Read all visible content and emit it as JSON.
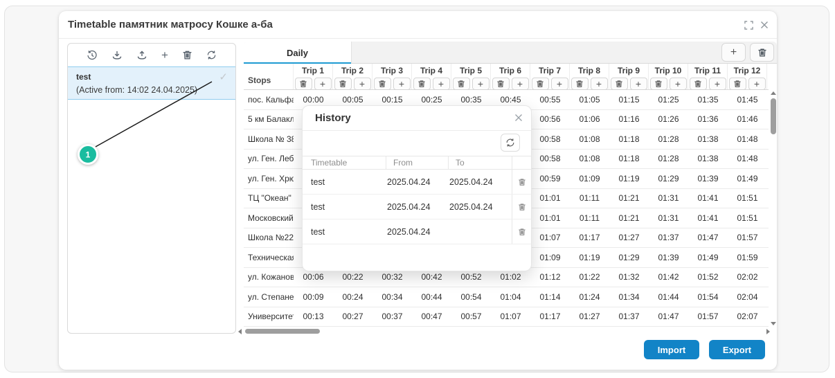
{
  "window": {
    "title": "Timetable памятник матросу Кошке а-ба"
  },
  "left_panel": {
    "item": {
      "name": "test",
      "active_from": "(Active from: 14:02 24.04.2025)",
      "selected": true
    }
  },
  "tabs": {
    "daily": "Daily"
  },
  "timetable": {
    "stops_header": "Stops",
    "trips": [
      "Trip 1",
      "Trip 2",
      "Trip 3",
      "Trip 4",
      "Trip 5",
      "Trip 6",
      "Trip 7",
      "Trip 8",
      "Trip 9",
      "Trip 10",
      "Trip 11",
      "Trip 12"
    ],
    "rows": [
      {
        "stop": "пос. Кальфа ...",
        "times": [
          "00:00",
          "00:05",
          "00:15",
          "00:25",
          "00:35",
          "00:45",
          "00:55",
          "01:05",
          "01:15",
          "01:25",
          "01:35",
          "01:45"
        ]
      },
      {
        "stop": "5 км Балакла...",
        "times": [
          "",
          "",
          "",
          "",
          "",
          "",
          "00:56",
          "01:06",
          "01:16",
          "01:26",
          "01:36",
          "01:46"
        ]
      },
      {
        "stop": "Школа № 38 ...",
        "times": [
          "",
          "",
          "",
          "",
          "",
          "",
          "00:58",
          "01:08",
          "01:18",
          "01:28",
          "01:38",
          "01:48"
        ]
      },
      {
        "stop": "ул. Ген. Лебе...",
        "times": [
          "",
          "",
          "",
          "",
          "",
          "",
          "00:58",
          "01:08",
          "01:18",
          "01:28",
          "01:38",
          "01:48"
        ]
      },
      {
        "stop": "ул. Ген. Хрюк...",
        "times": [
          "",
          "",
          "",
          "",
          "",
          "",
          "00:59",
          "01:09",
          "01:19",
          "01:29",
          "01:39",
          "01:49"
        ]
      },
      {
        "stop": "ТЦ \"Океан\" а...",
        "times": [
          "",
          "",
          "",
          "",
          "",
          "",
          "01:01",
          "01:11",
          "01:21",
          "01:31",
          "01:41",
          "01:51"
        ]
      },
      {
        "stop": "Московский ...",
        "times": [
          "",
          "",
          "",
          "",
          "",
          "",
          "01:01",
          "01:11",
          "01:21",
          "01:31",
          "01:41",
          "01:51"
        ]
      },
      {
        "stop": "Школа №22 ...",
        "times": [
          "",
          "",
          "",
          "",
          "",
          "",
          "01:07",
          "01:17",
          "01:27",
          "01:37",
          "01:47",
          "01:57"
        ]
      },
      {
        "stop": "Техническая ...",
        "times": [
          "",
          "",
          "",
          "",
          "",
          "",
          "01:09",
          "01:19",
          "01:29",
          "01:39",
          "01:49",
          "01:59"
        ]
      },
      {
        "stop": "ул. Кожанова...",
        "times": [
          "00:06",
          "00:22",
          "00:32",
          "00:42",
          "00:52",
          "01:02",
          "01:12",
          "01:22",
          "01:32",
          "01:42",
          "01:52",
          "02:02"
        ]
      },
      {
        "stop": "ул. Степанен...",
        "times": [
          "00:09",
          "00:24",
          "00:34",
          "00:44",
          "00:54",
          "01:04",
          "01:14",
          "01:24",
          "01:34",
          "01:44",
          "01:54",
          "02:04"
        ]
      },
      {
        "stop": "Университет ...",
        "times": [
          "00:13",
          "00:27",
          "00:37",
          "00:47",
          "00:57",
          "01:07",
          "01:17",
          "01:27",
          "01:37",
          "01:47",
          "01:57",
          "02:07"
        ]
      }
    ]
  },
  "history": {
    "title": "History",
    "columns": [
      "Timetable",
      "From",
      "To"
    ],
    "rows": [
      {
        "timetable": "test",
        "from": "2025.04.24",
        "to": "2025.04.24"
      },
      {
        "timetable": "test",
        "from": "2025.04.24",
        "to": "2025.04.24"
      },
      {
        "timetable": "test",
        "from": "2025.04.24",
        "to": ""
      }
    ]
  },
  "footer": {
    "import": "Import",
    "export": "Export"
  },
  "annotation": {
    "label": "1"
  },
  "icons": {
    "plus_glyph": "+",
    "check_glyph": "✓",
    "left_toolbar": [
      "history-icon",
      "download-icon",
      "upload-icon",
      "plus-icon",
      "trash-icon",
      "refresh-icon"
    ]
  },
  "colors": {
    "accent_blue": "#1284c7",
    "tab_underline": "#1e9ad2",
    "selected_item_bg": "#e3f1fb",
    "badge_teal": "#1abc9f"
  }
}
